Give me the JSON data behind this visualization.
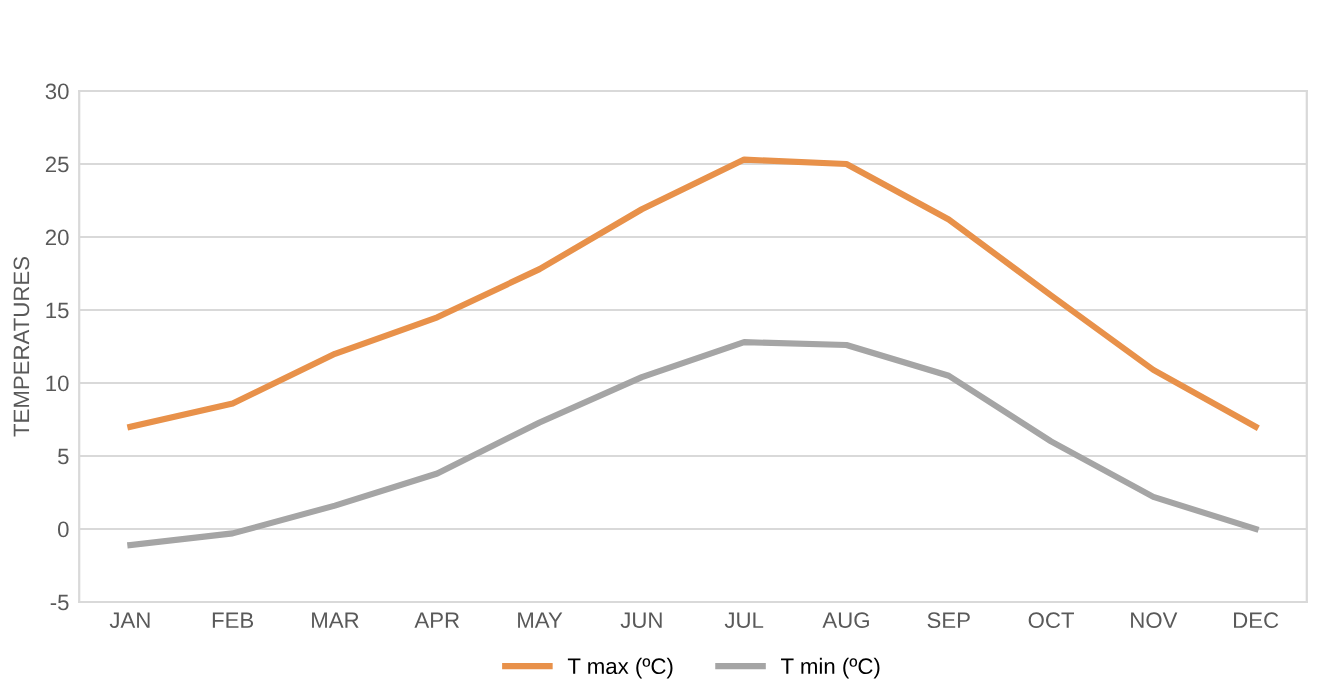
{
  "chart_data": {
    "type": "line",
    "ylabel": "TEMPERATURES",
    "categories": [
      "JAN",
      "FEB",
      "MAR",
      "APR",
      "MAY",
      "JUN",
      "JUL",
      "AUG",
      "SEP",
      "OCT",
      "NOV",
      "DEC"
    ],
    "series": [
      {
        "name": "T max (ºC)",
        "color": "#e8914a",
        "values": [
          7.0,
          8.6,
          12.0,
          14.5,
          17.8,
          21.9,
          25.3,
          25.0,
          21.2,
          16.0,
          10.9,
          7.0
        ]
      },
      {
        "name": "T min (ºC)",
        "color": "#a5a5a5",
        "values": [
          -1.1,
          -0.3,
          1.6,
          3.8,
          7.3,
          10.4,
          12.8,
          12.6,
          10.5,
          6.0,
          2.2,
          0.0
        ]
      }
    ],
    "ylim": [
      -5,
      30
    ],
    "yticks": [
      -5,
      0,
      5,
      10,
      15,
      20,
      25,
      30
    ],
    "grid": "y",
    "legend": "bottom",
    "marker": "none",
    "line_style": "solid"
  }
}
